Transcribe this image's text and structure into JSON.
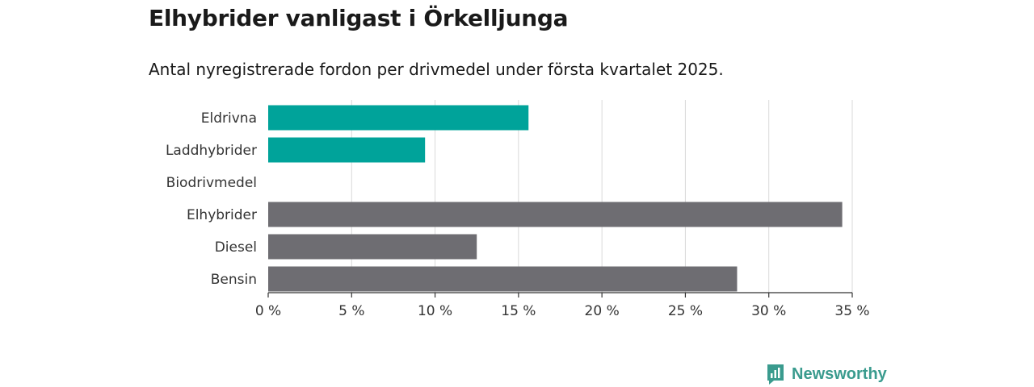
{
  "header": {
    "title": "Elhybrider vanligast i Örkelljunga",
    "subtitle": "Antal nyregistrerade fordon per drivmedel under första kvartalet 2025."
  },
  "brand": {
    "name": "Newsworthy",
    "color": "#3a9b8e"
  },
  "chart_data": {
    "type": "bar",
    "orientation": "horizontal",
    "categories": [
      "Eldrivna",
      "Laddhybrider",
      "Biodrivmedel",
      "Elhybrider",
      "Diesel",
      "Bensin"
    ],
    "values": [
      15.6,
      9.4,
      0,
      34.4,
      12.5,
      28.1
    ],
    "colors": [
      "#00a39a",
      "#00a39a",
      "#00a39a",
      "#6e6d72",
      "#6e6d72",
      "#6e6d72"
    ],
    "xlim": [
      0,
      35
    ],
    "xticks": [
      0,
      5,
      10,
      15,
      20,
      25,
      30,
      35
    ],
    "tick_labels": [
      "0 %",
      "5 %",
      "10 %",
      "15 %",
      "20 %",
      "25 %",
      "30 %",
      "35 %"
    ],
    "grid": true,
    "legend": "none"
  }
}
